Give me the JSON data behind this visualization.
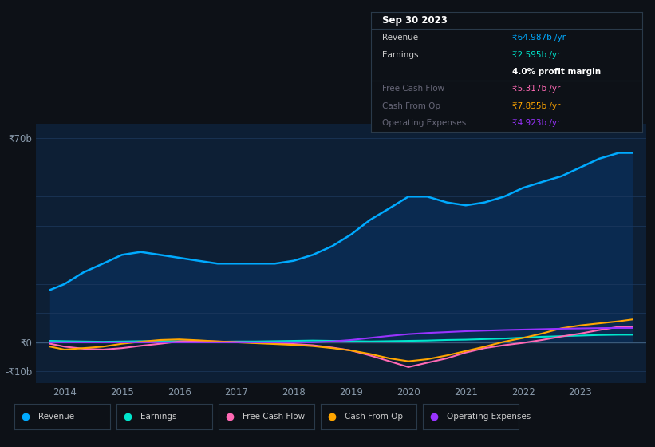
{
  "bg_color": "#0d1117",
  "plot_bg_color": "#0d1f35",
  "grid_color": "#1e3a5f",
  "x_years": [
    2013.75,
    2014.0,
    2014.33,
    2014.67,
    2015.0,
    2015.33,
    2015.67,
    2016.0,
    2016.33,
    2016.67,
    2017.0,
    2017.33,
    2017.67,
    2018.0,
    2018.33,
    2018.67,
    2019.0,
    2019.33,
    2019.67,
    2020.0,
    2020.33,
    2020.67,
    2021.0,
    2021.33,
    2021.67,
    2022.0,
    2022.33,
    2022.67,
    2023.0,
    2023.33,
    2023.67,
    2023.9
  ],
  "revenue": [
    18,
    20,
    24,
    27,
    30,
    31,
    30,
    29,
    28,
    27,
    27,
    27,
    27,
    28,
    30,
    33,
    37,
    42,
    46,
    50,
    50,
    48,
    47,
    48,
    50,
    53,
    55,
    57,
    60,
    63,
    65,
    65
  ],
  "earnings": [
    0.5,
    0.4,
    0.3,
    0.2,
    0.3,
    0.4,
    0.4,
    0.4,
    0.3,
    0.2,
    0.3,
    0.3,
    0.4,
    0.5,
    0.6,
    0.5,
    0.4,
    0.3,
    0.4,
    0.5,
    0.6,
    0.8,
    0.9,
    1.1,
    1.3,
    1.6,
    1.9,
    2.1,
    2.3,
    2.5,
    2.6,
    2.6
  ],
  "free_cash_flow": [
    -0.5,
    -1.5,
    -2.2,
    -2.5,
    -2.0,
    -1.2,
    -0.5,
    0.3,
    0.5,
    0.3,
    0.1,
    -0.1,
    -0.3,
    -0.6,
    -1.0,
    -1.8,
    -2.8,
    -4.5,
    -6.5,
    -8.5,
    -7.0,
    -5.5,
    -3.5,
    -2.0,
    -1.0,
    -0.2,
    0.8,
    2.0,
    3.0,
    4.2,
    5.3,
    5.3
  ],
  "cash_from_op": [
    -1.5,
    -2.5,
    -2.0,
    -1.5,
    -0.5,
    0.2,
    0.8,
    1.0,
    0.7,
    0.3,
    0.0,
    -0.3,
    -0.6,
    -0.9,
    -1.3,
    -2.0,
    -2.8,
    -4.0,
    -5.5,
    -6.5,
    -5.8,
    -4.5,
    -3.0,
    -1.5,
    0.2,
    1.5,
    3.0,
    4.8,
    5.8,
    6.5,
    7.2,
    7.8
  ],
  "operating_expenses": [
    0.0,
    0.0,
    0.0,
    0.0,
    0.0,
    0.0,
    0.0,
    0.0,
    0.0,
    0.0,
    0.0,
    0.0,
    0.0,
    0.0,
    0.0,
    0.3,
    0.8,
    1.5,
    2.2,
    2.8,
    3.2,
    3.5,
    3.8,
    4.0,
    4.2,
    4.35,
    4.5,
    4.65,
    4.75,
    4.85,
    4.92,
    4.92
  ],
  "revenue_color": "#00aaff",
  "earnings_color": "#00e5cc",
  "free_cash_flow_color": "#ff69b4",
  "cash_from_op_color": "#ffa500",
  "operating_expenses_color": "#9933ff",
  "revenue_fill_color": "#0a2a50",
  "tick_color": "#8899aa",
  "label_color": "#cccccc",
  "x_ticks": [
    2014,
    2015,
    2016,
    2017,
    2018,
    2019,
    2020,
    2021,
    2022,
    2023
  ],
  "ylim_min": -14,
  "ylim_max": 75,
  "tooltip_bg": "#0d1117",
  "tooltip_border": "#2a3a4a",
  "legend_bg": "#0d1117",
  "legend_border": "#2a3a4a",
  "tooltip": {
    "title": "Sep 30 2023",
    "rows": [
      {
        "label": "Revenue",
        "value": "₹64.987b /yr",
        "value_color": "#00aaff",
        "dim": false,
        "sep_after": false
      },
      {
        "label": "Earnings",
        "value": "₹2.595b /yr",
        "value_color": "#00e5cc",
        "dim": false,
        "sep_after": false
      },
      {
        "label": "",
        "value": "4.0% profit margin",
        "value_color": "#ffffff",
        "dim": false,
        "sep_after": true
      },
      {
        "label": "Free Cash Flow",
        "value": "₹5.317b /yr",
        "value_color": "#ff69b4",
        "dim": true,
        "sep_after": false
      },
      {
        "label": "Cash From Op",
        "value": "₹7.855b /yr",
        "value_color": "#ffa500",
        "dim": true,
        "sep_after": false
      },
      {
        "label": "Operating Expenses",
        "value": "₹4.923b /yr",
        "value_color": "#9933ff",
        "dim": true,
        "sep_after": false
      }
    ]
  }
}
